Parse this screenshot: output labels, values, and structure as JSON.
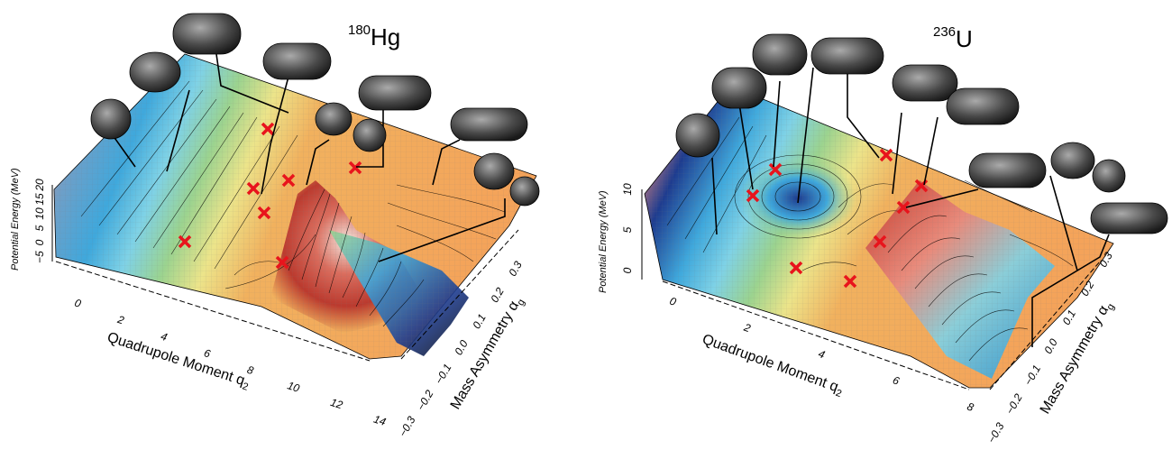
{
  "chart_data": [
    {
      "type": "surface",
      "nucleus": {
        "mass": "180",
        "symbol": "Hg"
      },
      "zlabel": "Potential Energy (MeV)",
      "xlabel_main": "Quadrupole Moment q",
      "xlabel_sub": "2",
      "ylabel_main": "Mass Asymmetry α",
      "ylabel_sub": "g",
      "x_ticks": [
        "0",
        "2",
        "4",
        "6",
        "8",
        "10",
        "12",
        "14"
      ],
      "y_ticks": [
        "−0.3",
        "−0.2",
        "−0.1",
        "0.0",
        "0.1",
        "0.2",
        "0.3"
      ],
      "z_ticks": [
        "−5",
        "0",
        "5",
        "10",
        "15",
        "20"
      ],
      "xlim": [
        -1,
        14
      ],
      "ylim": [
        -0.3,
        0.3
      ],
      "zlim": [
        -5,
        20
      ],
      "saddle_markers": 8,
      "shape_insets": 8,
      "colormap": [
        "#e7877f",
        "#1e3c8f",
        "#3fa8dc",
        "#7fd2e6",
        "#9bd38f",
        "#ece48a",
        "#f1b15e",
        "#f49b52"
      ]
    },
    {
      "type": "surface",
      "nucleus": {
        "mass": "236",
        "symbol": "U"
      },
      "zlabel": "Potential Energy (MeV)",
      "xlabel_main": "Quadrupole Moment q",
      "xlabel_sub": "2",
      "ylabel_main": "Mass Asymmetry α",
      "ylabel_sub": "g",
      "x_ticks": [
        "0",
        "2",
        "4",
        "6",
        "8"
      ],
      "y_ticks": [
        "−0.3",
        "−0.2",
        "−0.1",
        "0.0",
        "0.1",
        "0.2",
        "0.3"
      ],
      "z_ticks": [
        "0",
        "5",
        "10"
      ],
      "xlim": [
        -0.5,
        9
      ],
      "ylim": [
        -0.3,
        0.3
      ],
      "zlim": [
        -2,
        10
      ],
      "saddle_markers": 8,
      "shape_insets": 9,
      "colormap": [
        "#d44a3d",
        "#1e3c8f",
        "#3fa8dc",
        "#7fd2e6",
        "#9bd38f",
        "#ece48a",
        "#f1b15e",
        "#f49b52"
      ]
    }
  ]
}
